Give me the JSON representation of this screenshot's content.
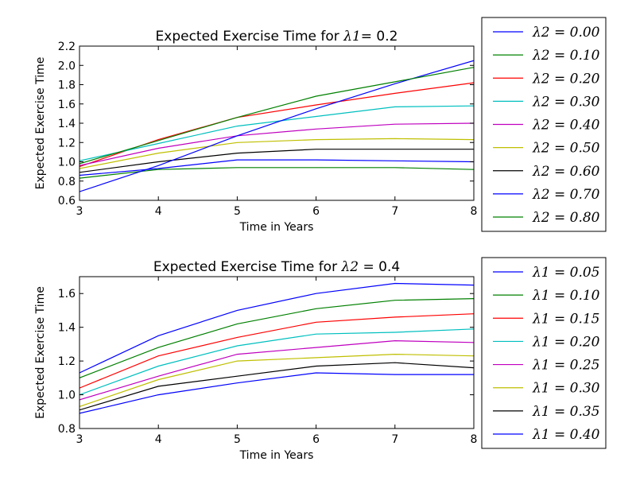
{
  "chart_data": [
    {
      "type": "line",
      "title": "Expected Exercise Time for λ1= 0.2",
      "xlabel": "Time in Years",
      "ylabel": "Expected Exercise Time",
      "xlim": [
        3,
        8
      ],
      "ylim": [
        0.6,
        2.2
      ],
      "xticks": [
        "3",
        "4",
        "5",
        "6",
        "7",
        "8"
      ],
      "yticks": [
        "0.6",
        "0.8",
        "1.0",
        "1.2",
        "1.4",
        "1.6",
        "1.8",
        "2.0",
        "2.2"
      ],
      "grid": false,
      "legend_position": "outside-right",
      "x": [
        3,
        4,
        5,
        6,
        7,
        8
      ],
      "series": [
        {
          "name": "λ2 = 0.00",
          "color": "#0000ff",
          "values": [
            0.86,
            0.93,
            1.02,
            1.02,
            1.01,
            1.0
          ]
        },
        {
          "name": "λ2 = 0.10",
          "color": "#008000",
          "values": [
            0.83,
            0.92,
            0.94,
            0.94,
            0.94,
            0.92
          ]
        },
        {
          "name": "λ2 = 0.20",
          "color": "#ff0000",
          "values": [
            0.95,
            1.23,
            1.46,
            1.59,
            1.71,
            1.82
          ]
        },
        {
          "name": "λ2 = 0.30",
          "color": "#00bfbf",
          "values": [
            1.01,
            1.19,
            1.37,
            1.47,
            1.57,
            1.58
          ]
        },
        {
          "name": "λ2 = 0.40",
          "color": "#bf00bf",
          "values": [
            0.96,
            1.14,
            1.27,
            1.34,
            1.39,
            1.4
          ]
        },
        {
          "name": "λ2 = 0.50",
          "color": "#bfbf00",
          "values": [
            0.93,
            1.09,
            1.2,
            1.23,
            1.24,
            1.23
          ]
        },
        {
          "name": "λ2 = 0.60",
          "color": "#000000",
          "values": [
            0.89,
            1.0,
            1.09,
            1.13,
            1.13,
            1.13
          ]
        },
        {
          "name": "λ2 = 0.70",
          "color": "#0000ff",
          "values": [
            0.69,
            0.96,
            1.27,
            1.55,
            1.81,
            2.05
          ]
        },
        {
          "name": "λ2 = 0.80",
          "color": "#008000",
          "values": [
            0.98,
            1.22,
            1.46,
            1.68,
            1.83,
            1.98
          ]
        }
      ]
    },
    {
      "type": "line",
      "title": "Expected Exercise Time for λ2 = 0.4",
      "xlabel": "Time in Years",
      "ylabel": "Expected Exercise Time",
      "xlim": [
        3,
        8
      ],
      "ylim": [
        0.8,
        1.7
      ],
      "xticks": [
        "3",
        "4",
        "5",
        "6",
        "7",
        "8"
      ],
      "yticks": [
        "0.8",
        "1.0",
        "1.2",
        "1.4",
        "1.6"
      ],
      "grid": false,
      "legend_position": "outside-right",
      "x": [
        3,
        4,
        5,
        6,
        7,
        8
      ],
      "series": [
        {
          "name": "λ1 = 0.05",
          "color": "#0000ff",
          "values": [
            1.13,
            1.35,
            1.5,
            1.6,
            1.66,
            1.65
          ]
        },
        {
          "name": "λ1 = 0.10",
          "color": "#008000",
          "values": [
            1.1,
            1.28,
            1.42,
            1.51,
            1.56,
            1.57
          ]
        },
        {
          "name": "λ1 = 0.15",
          "color": "#ff0000",
          "values": [
            1.04,
            1.23,
            1.34,
            1.43,
            1.46,
            1.48
          ]
        },
        {
          "name": "λ1 = 0.20",
          "color": "#00bfbf",
          "values": [
            1.0,
            1.17,
            1.29,
            1.36,
            1.37,
            1.39
          ]
        },
        {
          "name": "λ1 = 0.25",
          "color": "#bf00bf",
          "values": [
            0.97,
            1.11,
            1.24,
            1.28,
            1.32,
            1.31
          ]
        },
        {
          "name": "λ1 = 0.30",
          "color": "#bfbf00",
          "values": [
            0.93,
            1.09,
            1.2,
            1.22,
            1.24,
            1.23
          ]
        },
        {
          "name": "λ1 = 0.35",
          "color": "#000000",
          "values": [
            0.91,
            1.05,
            1.11,
            1.17,
            1.19,
            1.16
          ]
        },
        {
          "name": "λ1 = 0.40",
          "color": "#0000ff",
          "values": [
            0.89,
            1.0,
            1.07,
            1.13,
            1.12,
            1.12
          ]
        }
      ]
    }
  ]
}
